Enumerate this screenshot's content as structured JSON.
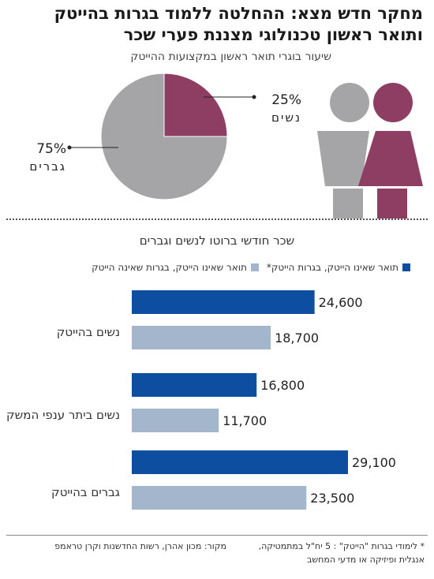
{
  "title_line1": "מחקר חדש מצא: ההחלטה ללמוד בגרות בהייטק",
  "title_line2": "ותואר ראשון טכנולוגי מצננת פערי שכר",
  "colors": {
    "women": "#8e3d63",
    "men": "#a5a5a8",
    "blue": "#0d4ea1",
    "light": "#a4b6cb"
  },
  "icons": [
    "woman-figure-icon",
    "man-figure-icon"
  ],
  "chart_data": [
    {
      "type": "pie",
      "title": "שיעור בוגרי תואר ראשון במקצועות ההייטק",
      "slices": [
        {
          "label": "נשים",
          "value": 25,
          "display": "25%"
        },
        {
          "label": "גברים",
          "value": 75,
          "display": "75%"
        }
      ]
    },
    {
      "type": "bar",
      "orientation": "horizontal",
      "title": "שכר חודשי ברוטו לנשים וגברים",
      "categories": [
        "נשים בהייטק",
        "נשים ביתר ענפי המשק",
        "גברים בהייטק"
      ],
      "series": [
        {
          "name": "תואר שאינו הייטק, בגרות הייטק*",
          "values": [
            24600,
            16800,
            29100
          ],
          "labels": [
            "24,600",
            "16,800",
            "29,100"
          ]
        },
        {
          "name": "תואר שאינו הייטק, בגרות שאינה הייטק",
          "values": [
            18700,
            11700,
            23500
          ],
          "labels": [
            "18,700",
            "11,700",
            "23,500"
          ]
        }
      ],
      "xlim": [
        0,
        35000
      ],
      "legend": "top-right"
    }
  ],
  "footnote_line1": "* לימודי בגרות \"הייטק\" : 5 יח\"ל במתמטיקה,",
  "footnote_line2": "אנגלית ופיזיקה או מדעי המחשב",
  "source": "מקור: מכון אהרן, רשות החדשנות וקרן טראמפ"
}
